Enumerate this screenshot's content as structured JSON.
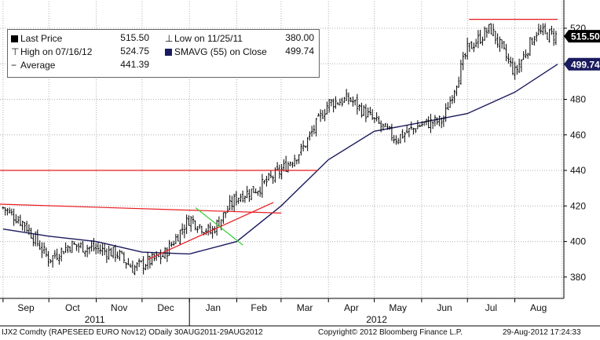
{
  "legend": {
    "last_price_label": "Last Price",
    "last_price_value": "515.50",
    "high_label": "High on 07/16/12",
    "high_value": "524.75",
    "average_label": "Average",
    "average_value": "441.39",
    "low_label": "Low on 11/25/11",
    "low_value": "380.00",
    "smavg_label": "SMAVG (55) on Close",
    "smavg_value": "499.74"
  },
  "footer": {
    "instrument": "IJX2 Comdty (RAPESEED  EURO    Nov12) ODaily 30AUG2011-29AUG2012",
    "copyright": "Copyright© 2012 Bloomberg Finance L.P.",
    "timestamp": "29-Aug-2012 17:24:33"
  },
  "colors": {
    "price": "#000000",
    "sma": "#1a1a5e",
    "red_lines": "#e8191e",
    "green_line": "#33cc33",
    "grid": "#b0b0b0",
    "last_tag": "#000000",
    "sma_tag": "#1a1a5e"
  },
  "chart_data": {
    "type": "bar",
    "subtype": "ohlc",
    "ylim": [
      368,
      535
    ],
    "yticks": [
      380,
      400,
      420,
      440,
      460,
      480,
      500,
      520
    ],
    "month_labels": [
      "Sep",
      "Oct",
      "Nov",
      "Dec",
      "Jan",
      "Feb",
      "Mar",
      "Apr",
      "May",
      "Jun",
      "Jul",
      "Aug"
    ],
    "year_labels": [
      "2011",
      "2012"
    ],
    "last_price_tag": "515.50",
    "sma_tag": "499.74",
    "grid": true,
    "price_series": {
      "name": "Last Price",
      "x": [
        "2011-09-01",
        "2011-09-15",
        "2011-10-01",
        "2011-10-15",
        "2011-11-01",
        "2011-11-15",
        "2011-11-25",
        "2011-12-15",
        "2012-01-01",
        "2012-01-15",
        "2012-02-01",
        "2012-02-15",
        "2012-03-01",
        "2012-03-15",
        "2012-04-01",
        "2012-04-15",
        "2012-05-01",
        "2012-05-15",
        "2012-06-01",
        "2012-06-15",
        "2012-07-01",
        "2012-07-16",
        "2012-08-01",
        "2012-08-15",
        "2012-08-29"
      ],
      "close": [
        419,
        410,
        390,
        398,
        396,
        393,
        385,
        392,
        413,
        405,
        425,
        430,
        440,
        452,
        478,
        480,
        468,
        458,
        466,
        468,
        508,
        520,
        495,
        518,
        515.5
      ]
    },
    "sma_series": {
      "name": "SMAVG (55) on Close",
      "x": [
        "2011-09-01",
        "2011-10-01",
        "2011-11-01",
        "2011-12-01",
        "2012-01-01",
        "2012-02-01",
        "2012-03-01",
        "2012-04-01",
        "2012-05-01",
        "2012-06-01",
        "2012-07-01",
        "2012-08-01",
        "2012-08-29"
      ],
      "values": [
        407,
        403,
        400,
        394,
        393,
        400,
        420,
        446,
        462,
        467,
        472,
        484,
        499.74
      ]
    },
    "annotations": [
      {
        "type": "horizontal",
        "y": 440,
        "x_from": "2011-08-30",
        "x_to": "2012-03-25"
      },
      {
        "type": "horizontal",
        "y": 525,
        "x_from": "2012-07-02",
        "x_to": "2012-08-29"
      },
      {
        "type": "trend",
        "from": [
          "2011-08-30",
          421
        ],
        "to": [
          "2012-03-01",
          416
        ]
      },
      {
        "type": "trend",
        "from": [
          "2011-12-05",
          390
        ],
        "to": [
          "2012-02-25",
          422
        ]
      },
      {
        "type": "trend",
        "from": [
          "2012-01-05",
          419
        ],
        "to": [
          "2012-02-05",
          398
        ]
      }
    ]
  }
}
